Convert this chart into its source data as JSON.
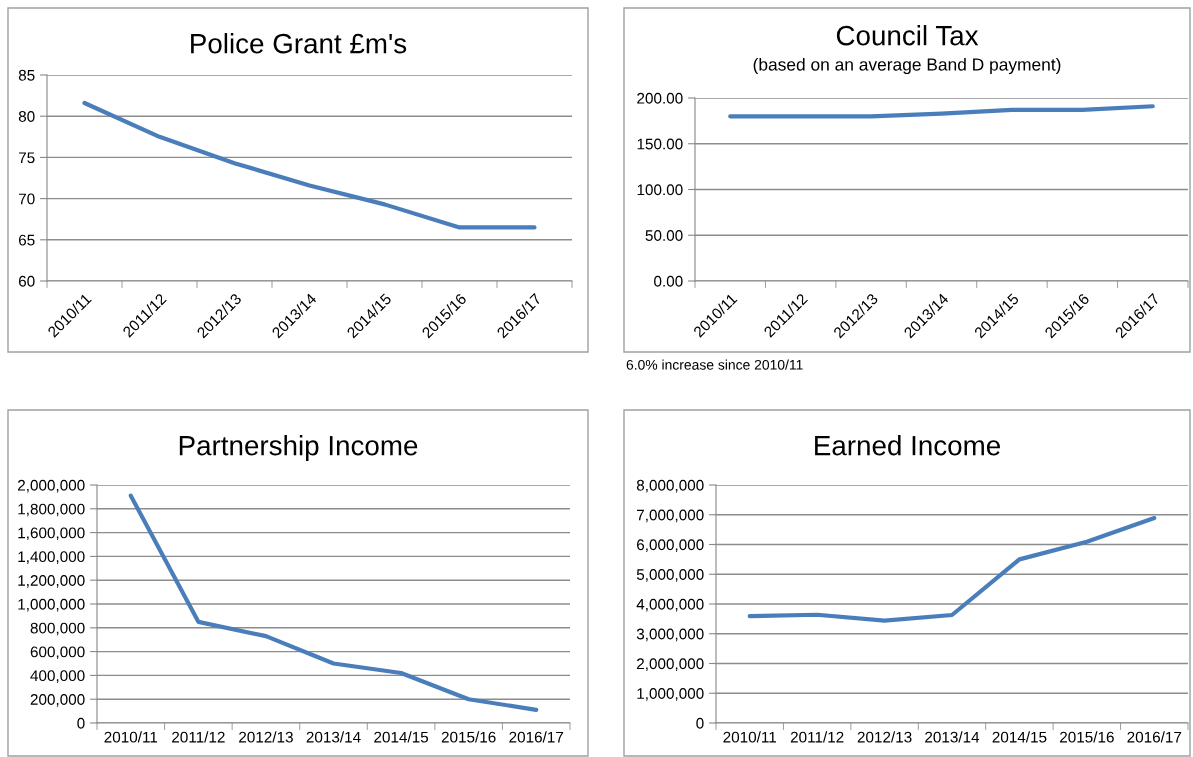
{
  "chart_data": [
    {
      "type": "line",
      "title": "Police Grant £m's",
      "categories": [
        "2010/11",
        "2011/12",
        "2012/13",
        "2013/14",
        "2014/15",
        "2015/16",
        "2016/17"
      ],
      "series": [
        {
          "color": "#4a7ebb",
          "values": [
            81.6,
            77.5,
            74.3,
            71.6,
            69.3,
            66.5,
            66.5
          ]
        }
      ],
      "ylim": [
        60,
        85
      ],
      "yticks": [
        60,
        65,
        70,
        75,
        80,
        85
      ],
      "grid": "y",
      "legend": false,
      "marker": "none",
      "line_style": "solid"
    },
    {
      "type": "line",
      "title": "Council Tax",
      "subtitle": "(based on an average Band D payment)",
      "categories": [
        "2010/11",
        "2011/12",
        "2012/13",
        "2013/14",
        "2014/15",
        "2015/16",
        "2016/17"
      ],
      "series": [
        {
          "color": "#4a7ebb",
          "values": [
            180,
            180,
            180,
            183,
            187,
            187,
            191
          ]
        }
      ],
      "ylim": [
        0,
        200
      ],
      "yticks": [
        {
          "value": 0,
          "label": "0.00"
        },
        {
          "value": 50,
          "label": "50.00"
        },
        {
          "value": 100,
          "label": "100.00"
        },
        {
          "value": 150,
          "label": "150.00"
        },
        {
          "value": 200,
          "label": "200.00"
        }
      ],
      "annotations": [
        "6.0% increase since 2010/11"
      ],
      "grid": "y",
      "legend": false,
      "marker": "none",
      "line_style": "solid"
    },
    {
      "type": "line",
      "title": "Partnership Income",
      "categories": [
        "2010/11",
        "2011/12",
        "2012/13",
        "2013/14",
        "2014/15",
        "2015/16",
        "2016/17"
      ],
      "series": [
        {
          "color": "#4a7ebb",
          "values": [
            1910000,
            850000,
            730000,
            500000,
            420000,
            200000,
            110000
          ]
        }
      ],
      "ylim": [
        0,
        2000000
      ],
      "yticks": [
        0,
        {
          "value": 200000,
          "label": "200,000"
        },
        {
          "value": 400000,
          "label": "400,000"
        },
        {
          "value": 600000,
          "label": "600,000"
        },
        {
          "value": 800000,
          "label": "800,000"
        },
        {
          "value": 1000000,
          "label": "1,000,000"
        },
        {
          "value": 1200000,
          "label": "1,200,000"
        },
        {
          "value": 1400000,
          "label": "1,400,000"
        },
        {
          "value": 1600000,
          "label": "1,600,000"
        },
        {
          "value": 1800000,
          "label": "1,800,000"
        },
        {
          "value": 2000000,
          "label": "2,000,000"
        }
      ],
      "grid": "y",
      "legend": false,
      "marker": "none",
      "line_style": "solid"
    },
    {
      "type": "line",
      "title": "Earned Income",
      "categories": [
        "2010/11",
        "2011/12",
        "2012/13",
        "2013/14",
        "2014/15",
        "2015/16",
        "2016/17"
      ],
      "series": [
        {
          "color": "#4a7ebb",
          "values": [
            3590000,
            3640000,
            3440000,
            3630000,
            5500000,
            6090000,
            6890000
          ]
        }
      ],
      "ylim": [
        0,
        8000000
      ],
      "yticks": [
        0,
        {
          "value": 1000000,
          "label": "1,000,000"
        },
        {
          "value": 2000000,
          "label": "2,000,000"
        },
        {
          "value": 3000000,
          "label": "3,000,000"
        },
        {
          "value": 4000000,
          "label": "4,000,000"
        },
        {
          "value": 5000000,
          "label": "5,000,000"
        },
        {
          "value": 6000000,
          "label": "6,000,000"
        },
        {
          "value": 7000000,
          "label": "7,000,000"
        },
        {
          "value": 8000000,
          "label": "8,000,000"
        }
      ],
      "grid": "y",
      "legend": false,
      "marker": "none",
      "line_style": "solid"
    }
  ]
}
